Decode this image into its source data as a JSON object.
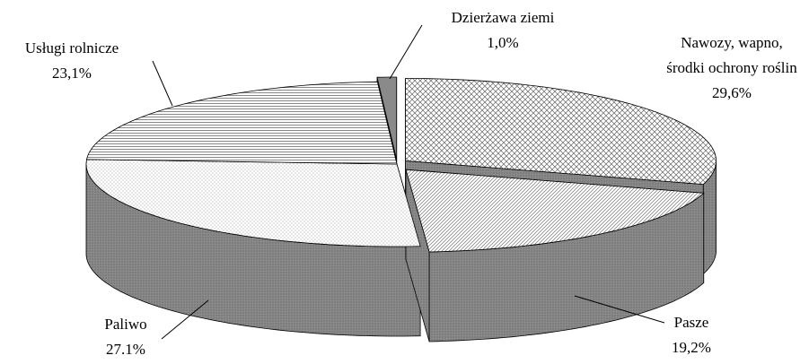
{
  "chart_data": {
    "type": "pie3d",
    "categories": [
      "Nawozy, wapno, środki ochrony roślin",
      "Pasze",
      "Paliwo",
      "Usługi rolnicze",
      "Dzierżawa ziemi"
    ],
    "values": [
      29.6,
      19.2,
      27.1,
      23.1,
      1.0
    ],
    "value_labels": [
      "29,6%",
      "19,2%",
      "27.1%",
      "23,1%",
      "1,0%"
    ]
  }
}
